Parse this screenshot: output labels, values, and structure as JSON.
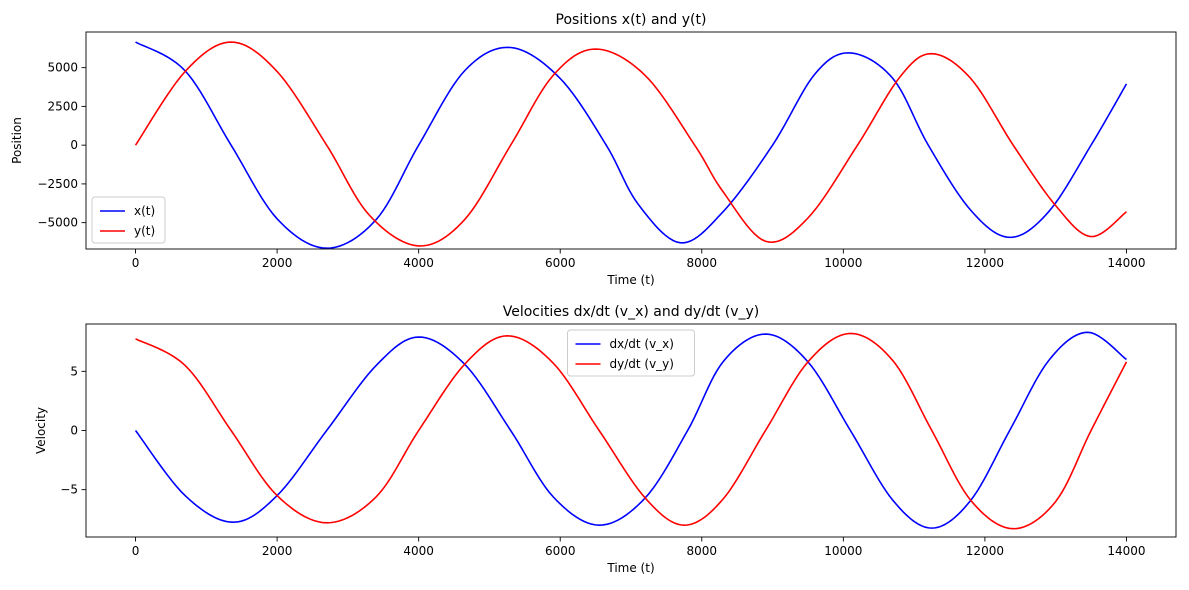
{
  "chart_data": [
    {
      "type": "line",
      "title": "Positions x(t) and y(t)",
      "xlabel": "Time (t)",
      "ylabel": "Position",
      "xlim": [
        -700,
        14700
      ],
      "ylim": [
        -6700,
        7300
      ],
      "xticks": [
        0,
        2000,
        4000,
        6000,
        8000,
        10000,
        12000,
        14000
      ],
      "xtick_labels": [
        "0",
        "2000",
        "4000",
        "6000",
        "8000",
        "10000",
        "12000",
        "14000"
      ],
      "yticks": [
        -5000,
        -2500,
        0,
        2500,
        5000
      ],
      "ytick_labels": [
        "−5000",
        "−2500",
        "0",
        "2500",
        "5000"
      ],
      "legend": "lower-left",
      "grid": false,
      "series": [
        {
          "name": "x(t)",
          "color": "#0000ff",
          "x": [
            0,
            700,
            1350,
            2000,
            2700,
            3400,
            4000,
            4650,
            5300,
            6000,
            6650,
            7100,
            7700,
            8300,
            9000,
            9600,
            10100,
            10700,
            11200,
            11800,
            12350,
            12900,
            13500,
            14000
          ],
          "y": [
            6650,
            4800,
            0,
            -4750,
            -6650,
            -4800,
            0,
            4800,
            6300,
            4300,
            0,
            -3800,
            -6300,
            -4300,
            0,
            4600,
            5950,
            4300,
            0,
            -4200,
            -5950,
            -4300,
            0,
            3950
          ]
        },
        {
          "name": "y(t)",
          "color": "#ff0000",
          "x": [
            0,
            700,
            1350,
            2000,
            2700,
            3300,
            4000,
            4650,
            5300,
            5900,
            6500,
            7200,
            7900,
            8300,
            8900,
            9500,
            10200,
            10800,
            11250,
            11800,
            12400,
            13000,
            13500,
            14000
          ],
          "y": [
            0,
            4750,
            6650,
            4750,
            0,
            -4500,
            -6500,
            -4800,
            0,
            4500,
            6200,
            4500,
            0,
            -3000,
            -6200,
            -4700,
            0,
            4400,
            5900,
            4300,
            0,
            -3900,
            -5900,
            -4300
          ]
        }
      ]
    },
    {
      "type": "line",
      "title": "Velocities dx/dt (v_x) and dy/dt (v_y)",
      "xlabel": "Time (t)",
      "ylabel": "Velocity",
      "xlim": [
        -700,
        14700
      ],
      "ylim": [
        -9,
        9
      ],
      "xticks": [
        0,
        2000,
        4000,
        6000,
        8000,
        10000,
        12000,
        14000
      ],
      "xtick_labels": [
        "0",
        "2000",
        "4000",
        "6000",
        "8000",
        "10000",
        "12000",
        "14000"
      ],
      "yticks": [
        -5,
        0,
        5
      ],
      "ytick_labels": [
        "−5",
        "0",
        "5"
      ],
      "legend": "upper-center",
      "grid": false,
      "series": [
        {
          "name": "dx/dt (v_x)",
          "color": "#0000ff",
          "x": [
            0,
            700,
            1380,
            2000,
            2700,
            3400,
            4000,
            4650,
            5300,
            5900,
            6550,
            7200,
            7800,
            8300,
            8900,
            9500,
            10100,
            10700,
            11250,
            11800,
            12350,
            12900,
            13450,
            14000
          ],
          "y": [
            0,
            -5.5,
            -7.75,
            -5.5,
            0,
            5.5,
            7.9,
            5.6,
            0,
            -5.6,
            -8.0,
            -5.7,
            0,
            5.8,
            8.15,
            5.8,
            0,
            -5.9,
            -8.25,
            -5.9,
            0,
            5.9,
            8.3,
            6.0
          ]
        },
        {
          "name": "dy/dt (v_y)",
          "color": "#ff0000",
          "x": [
            0,
            700,
            1350,
            2000,
            2700,
            3400,
            4000,
            4650,
            5250,
            5900,
            6550,
            7200,
            7750,
            8300,
            8900,
            9500,
            10100,
            10700,
            11250,
            11800,
            12400,
            13000,
            13500,
            14000
          ],
          "y": [
            7.75,
            5.5,
            0,
            -5.5,
            -7.8,
            -5.6,
            0,
            5.6,
            8.0,
            5.7,
            0,
            -5.7,
            -8.0,
            -5.8,
            0,
            5.8,
            8.2,
            5.9,
            0,
            -5.9,
            -8.3,
            -6.0,
            0,
            5.8
          ]
        }
      ]
    }
  ]
}
